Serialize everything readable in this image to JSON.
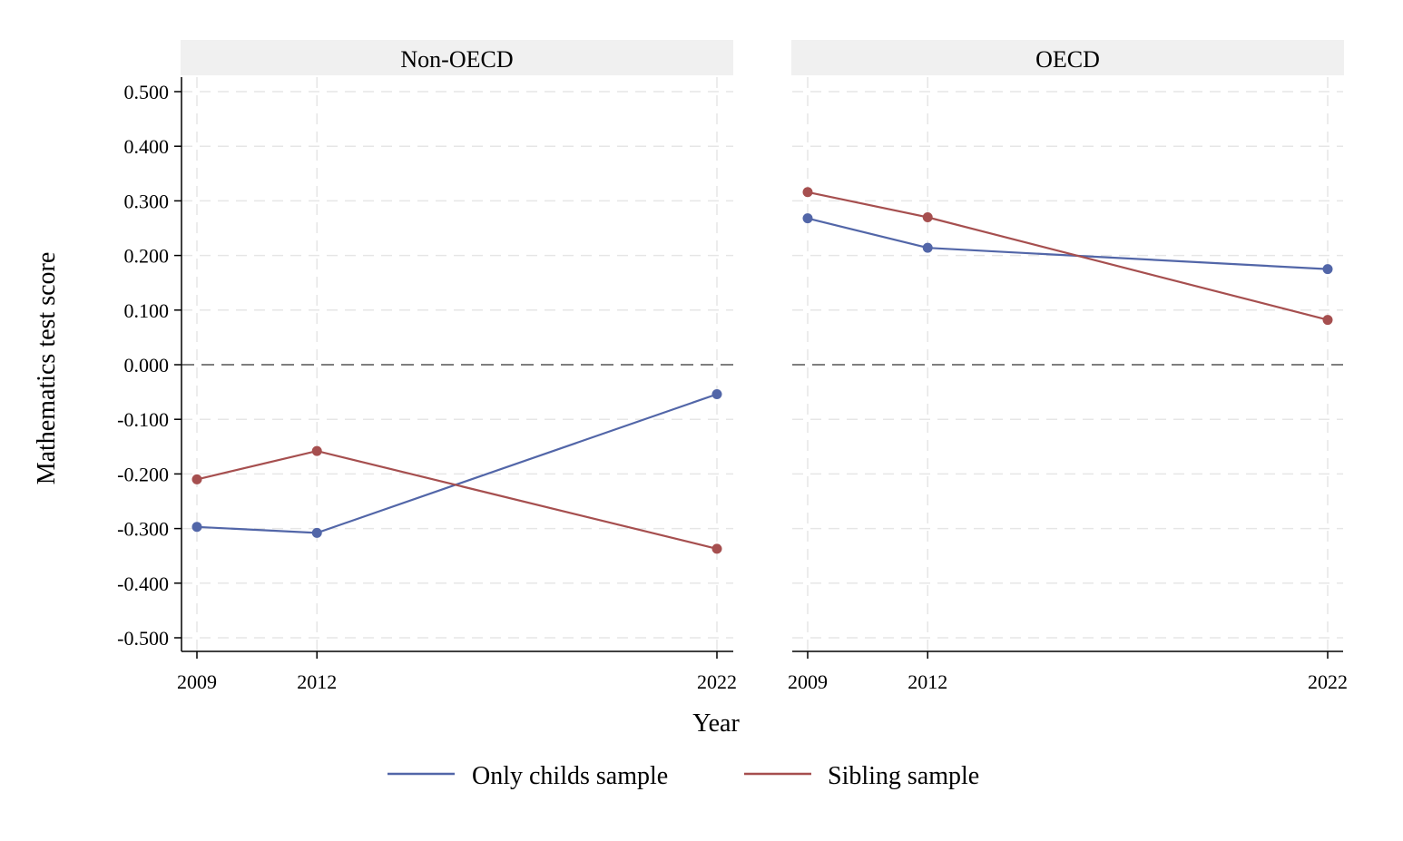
{
  "chart_data": {
    "type": "line",
    "ylabel": "Mathematics test score",
    "xlabel": "Year",
    "ylim": [
      -0.5,
      0.5
    ],
    "yticks": [
      "-0.500",
      "-0.400",
      "-0.300",
      "-0.200",
      "-0.100",
      "0.000",
      "0.100",
      "0.200",
      "0.300",
      "0.400",
      "0.500"
    ],
    "x": [
      2009,
      2012,
      2022
    ],
    "xtick_labels": [
      "2009",
      "2012",
      "2022"
    ],
    "grid": true,
    "legend_position": "bottom",
    "colors": {
      "only_child": "#5266a8",
      "sibling": "#a64f4f",
      "zero_line": "#7f7f7f",
      "strip": "#f0f0f0"
    },
    "legend": [
      "Only childs sample",
      "Sibling sample"
    ],
    "panels": [
      {
        "title": "Non-OECD",
        "series": [
          {
            "key": "only_child",
            "values": [
              -0.297,
              -0.308,
              -0.054
            ]
          },
          {
            "key": "sibling",
            "values": [
              -0.21,
              -0.158,
              -0.337
            ]
          }
        ]
      },
      {
        "title": "OECD",
        "series": [
          {
            "key": "only_child",
            "values": [
              0.268,
              0.214,
              0.175
            ]
          },
          {
            "key": "sibling",
            "values": [
              0.316,
              0.27,
              0.082
            ]
          }
        ]
      }
    ]
  }
}
